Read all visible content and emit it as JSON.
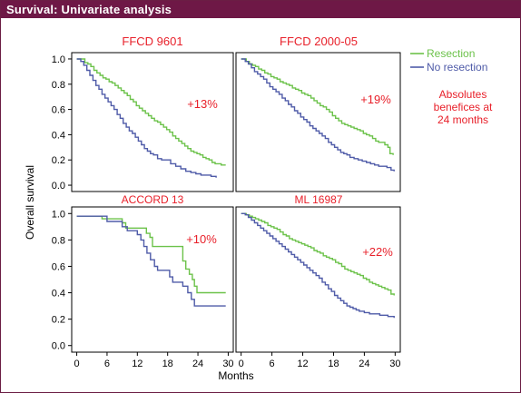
{
  "header": {
    "title": "Survival: Univariate analysis"
  },
  "colors": {
    "banner": "#6e1846",
    "resection": "#6cc24a",
    "no_resection": "#4f5ba8",
    "accent_red": "#e8202a"
  },
  "legend": {
    "items": [
      "Resection",
      "No resection"
    ]
  },
  "note": {
    "lines": [
      "Absolutes",
      "benefices at",
      "24 months"
    ]
  },
  "chart_data": {
    "type": "line",
    "step": true,
    "xlabel": "Months",
    "ylabel": "Overall survival",
    "xticks": [
      0,
      6,
      12,
      18,
      24,
      30
    ],
    "yticks": [
      "1.0",
      "0.8",
      "0.6",
      "0.4",
      "0.2",
      "0.0"
    ],
    "xlim": [
      -1,
      31
    ],
    "ylim": [
      -0.05,
      1.05
    ],
    "panels": [
      {
        "title": "FFCD 9601",
        "annotation": "+13%",
        "series": [
          {
            "name": "Resection",
            "x": [
              0,
              1,
              1.6,
              2.2,
              2.8,
              3.4,
              4,
              4.6,
              5.2,
              5.8,
              6.4,
              7,
              7.6,
              8.2,
              8.8,
              9.4,
              10,
              10.6,
              11.2,
              11.8,
              12.4,
              13,
              13.6,
              14.2,
              14.8,
              15.4,
              16,
              16.6,
              17.2,
              17.8,
              18.4,
              19,
              19.6,
              20.2,
              20.8,
              21.4,
              22,
              22.6,
              23.2,
              23.8,
              24.4,
              25,
              25.6,
              26.2,
              26.8,
              27.4,
              28,
              28.6,
              29.5
            ],
            "y": [
              1.0,
              1.0,
              0.97,
              0.96,
              0.94,
              0.91,
              0.89,
              0.87,
              0.85,
              0.84,
              0.82,
              0.81,
              0.79,
              0.77,
              0.75,
              0.73,
              0.71,
              0.68,
              0.66,
              0.63,
              0.61,
              0.59,
              0.57,
              0.55,
              0.53,
              0.51,
              0.5,
              0.48,
              0.46,
              0.44,
              0.42,
              0.39,
              0.37,
              0.35,
              0.33,
              0.31,
              0.29,
              0.27,
              0.26,
              0.25,
              0.24,
              0.22,
              0.21,
              0.2,
              0.18,
              0.17,
              0.17,
              0.16,
              0.16
            ]
          },
          {
            "name": "No resection",
            "x": [
              0,
              0.8,
              1.4,
              2,
              2.6,
              3.2,
              3.8,
              4.4,
              5,
              5.6,
              6.2,
              6.8,
              7.4,
              8,
              8.6,
              9.2,
              9.8,
              10.4,
              11,
              11.6,
              12.2,
              12.8,
              13.4,
              14,
              14.6,
              15.2,
              16,
              16.8,
              17.6,
              18.6,
              19.6,
              20.6,
              21.6,
              22.6,
              23.6,
              24.6,
              25.6,
              26.6,
              27.6
            ],
            "y": [
              1.0,
              0.98,
              0.95,
              0.91,
              0.87,
              0.83,
              0.79,
              0.76,
              0.72,
              0.69,
              0.66,
              0.63,
              0.6,
              0.56,
              0.53,
              0.49,
              0.46,
              0.43,
              0.41,
              0.38,
              0.35,
              0.32,
              0.29,
              0.27,
              0.25,
              0.24,
              0.21,
              0.2,
              0.2,
              0.17,
              0.15,
              0.13,
              0.11,
              0.1,
              0.09,
              0.08,
              0.08,
              0.07,
              0.06
            ]
          }
        ]
      },
      {
        "title": "FFCD 2000-05",
        "annotation": "+19%",
        "series": [
          {
            "name": "Resection",
            "x": [
              0,
              1,
              1.6,
              2.2,
              2.8,
              3.4,
              4,
              4.6,
              5.2,
              5.8,
              6.4,
              7,
              7.6,
              8.2,
              8.8,
              9.4,
              10,
              10.6,
              11.2,
              11.8,
              12.4,
              13,
              13.6,
              14.2,
              14.8,
              15.4,
              16,
              16.6,
              17.2,
              17.8,
              18.4,
              19,
              19.6,
              20.2,
              20.8,
              21.4,
              22,
              22.6,
              23.2,
              23.8,
              24.4,
              25,
              25.6,
              26.2,
              26.8,
              27.4,
              28,
              28.6,
              29,
              29.6
            ],
            "y": [
              1.0,
              0.98,
              0.96,
              0.95,
              0.94,
              0.92,
              0.91,
              0.89,
              0.88,
              0.86,
              0.85,
              0.84,
              0.82,
              0.81,
              0.8,
              0.79,
              0.77,
              0.76,
              0.75,
              0.73,
              0.72,
              0.71,
              0.69,
              0.67,
              0.65,
              0.63,
              0.62,
              0.6,
              0.58,
              0.55,
              0.53,
              0.51,
              0.49,
              0.48,
              0.47,
              0.46,
              0.45,
              0.44,
              0.43,
              0.41,
              0.4,
              0.39,
              0.37,
              0.35,
              0.34,
              0.34,
              0.32,
              0.3,
              0.25,
              0.24
            ]
          },
          {
            "name": "No resection",
            "x": [
              0,
              0.8,
              1.4,
              2,
              2.6,
              3.2,
              3.8,
              4.4,
              5,
              5.6,
              6.2,
              6.8,
              7.4,
              8,
              8.6,
              9.2,
              9.8,
              10.4,
              11,
              11.6,
              12.2,
              12.8,
              13.4,
              14,
              14.6,
              15.2,
              15.8,
              16.4,
              17,
              17.6,
              18.2,
              18.8,
              19.4,
              20,
              20.6,
              21.2,
              22,
              22.8,
              23.6,
              24.4,
              25.2,
              26,
              26.8,
              27.6,
              28.4,
              29.2,
              29.8
            ],
            "y": [
              1.0,
              0.98,
              0.96,
              0.93,
              0.9,
              0.88,
              0.86,
              0.84,
              0.81,
              0.78,
              0.76,
              0.74,
              0.72,
              0.69,
              0.67,
              0.64,
              0.62,
              0.59,
              0.57,
              0.54,
              0.52,
              0.5,
              0.47,
              0.45,
              0.43,
              0.41,
              0.39,
              0.37,
              0.34,
              0.32,
              0.3,
              0.28,
              0.26,
              0.25,
              0.24,
              0.22,
              0.21,
              0.2,
              0.19,
              0.18,
              0.17,
              0.16,
              0.15,
              0.15,
              0.14,
              0.12,
              0.11
            ]
          }
        ]
      },
      {
        "title": "ACCORD 13",
        "annotation": "+10%",
        "series": [
          {
            "name": "Resection",
            "x": [
              0,
              2,
              4.5,
              5,
              7,
              9,
              9.7,
              12,
              13.8,
              14.5,
              15,
              17.5,
              21,
              21.6,
              22.3,
              22.9,
              23.3,
              23.8,
              29.5
            ],
            "y": [
              0.98,
              0.98,
              0.98,
              0.96,
              0.96,
              0.93,
              0.89,
              0.89,
              0.85,
              0.82,
              0.75,
              0.75,
              0.64,
              0.58,
              0.54,
              0.5,
              0.45,
              0.4,
              0.4
            ]
          },
          {
            "name": "No resection",
            "x": [
              0,
              4,
              6,
              7.5,
              9,
              10,
              12,
              12.7,
              13.3,
              13.9,
              14.6,
              15.4,
              16,
              17.7,
              18.4,
              19,
              20,
              21,
              22,
              22.7,
              23.3,
              29.5
            ],
            "y": [
              0.98,
              0.98,
              0.94,
              0.94,
              0.9,
              0.87,
              0.84,
              0.8,
              0.75,
              0.7,
              0.65,
              0.6,
              0.57,
              0.57,
              0.52,
              0.48,
              0.48,
              0.45,
              0.4,
              0.35,
              0.3,
              0.3
            ]
          }
        ]
      },
      {
        "title": "ML 16987",
        "annotation": "+22%",
        "series": [
          {
            "name": "Resection",
            "x": [
              0,
              1,
              1.6,
              2.2,
              2.8,
              3.4,
              4,
              4.6,
              5.2,
              5.8,
              6.4,
              7,
              7.6,
              8.2,
              8.8,
              9.4,
              10,
              10.6,
              11.2,
              11.8,
              12.4,
              13,
              13.6,
              14.2,
              14.8,
              15.4,
              16,
              16.6,
              17.2,
              17.8,
              18.4,
              19,
              19.6,
              20.2,
              20.8,
              21.4,
              22,
              22.6,
              23.2,
              23.8,
              24.4,
              25,
              25.6,
              26.2,
              26.8,
              27.4,
              28,
              28.6,
              29.2,
              29.8
            ],
            "y": [
              1.0,
              0.99,
              0.98,
              0.97,
              0.96,
              0.95,
              0.94,
              0.93,
              0.91,
              0.9,
              0.89,
              0.88,
              0.86,
              0.84,
              0.83,
              0.81,
              0.8,
              0.79,
              0.78,
              0.77,
              0.76,
              0.75,
              0.74,
              0.72,
              0.71,
              0.7,
              0.68,
              0.67,
              0.66,
              0.65,
              0.63,
              0.62,
              0.6,
              0.58,
              0.57,
              0.56,
              0.55,
              0.54,
              0.53,
              0.51,
              0.5,
              0.48,
              0.47,
              0.46,
              0.45,
              0.44,
              0.43,
              0.42,
              0.39,
              0.38
            ]
          },
          {
            "name": "No resection",
            "x": [
              0,
              0.8,
              1.4,
              2,
              2.6,
              3.2,
              3.8,
              4.4,
              5,
              5.6,
              6.2,
              6.8,
              7.4,
              8,
              8.6,
              9.2,
              9.8,
              10.4,
              11,
              11.6,
              12.2,
              12.8,
              13.4,
              14,
              14.6,
              15.2,
              15.8,
              16.4,
              17,
              17.6,
              18.2,
              18.8,
              19.4,
              20,
              20.6,
              21.2,
              21.8,
              22.4,
              23,
              24,
              25,
              26,
              27,
              28,
              28.6,
              29.2,
              29.8
            ],
            "y": [
              1.0,
              0.99,
              0.97,
              0.95,
              0.93,
              0.91,
              0.89,
              0.87,
              0.85,
              0.83,
              0.81,
              0.79,
              0.77,
              0.75,
              0.73,
              0.71,
              0.69,
              0.67,
              0.65,
              0.63,
              0.61,
              0.59,
              0.57,
              0.55,
              0.53,
              0.51,
              0.48,
              0.46,
              0.43,
              0.41,
              0.38,
              0.36,
              0.34,
              0.32,
              0.3,
              0.29,
              0.28,
              0.27,
              0.26,
              0.25,
              0.24,
              0.24,
              0.23,
              0.23,
              0.22,
              0.22,
              0.21
            ]
          }
        ]
      }
    ]
  }
}
